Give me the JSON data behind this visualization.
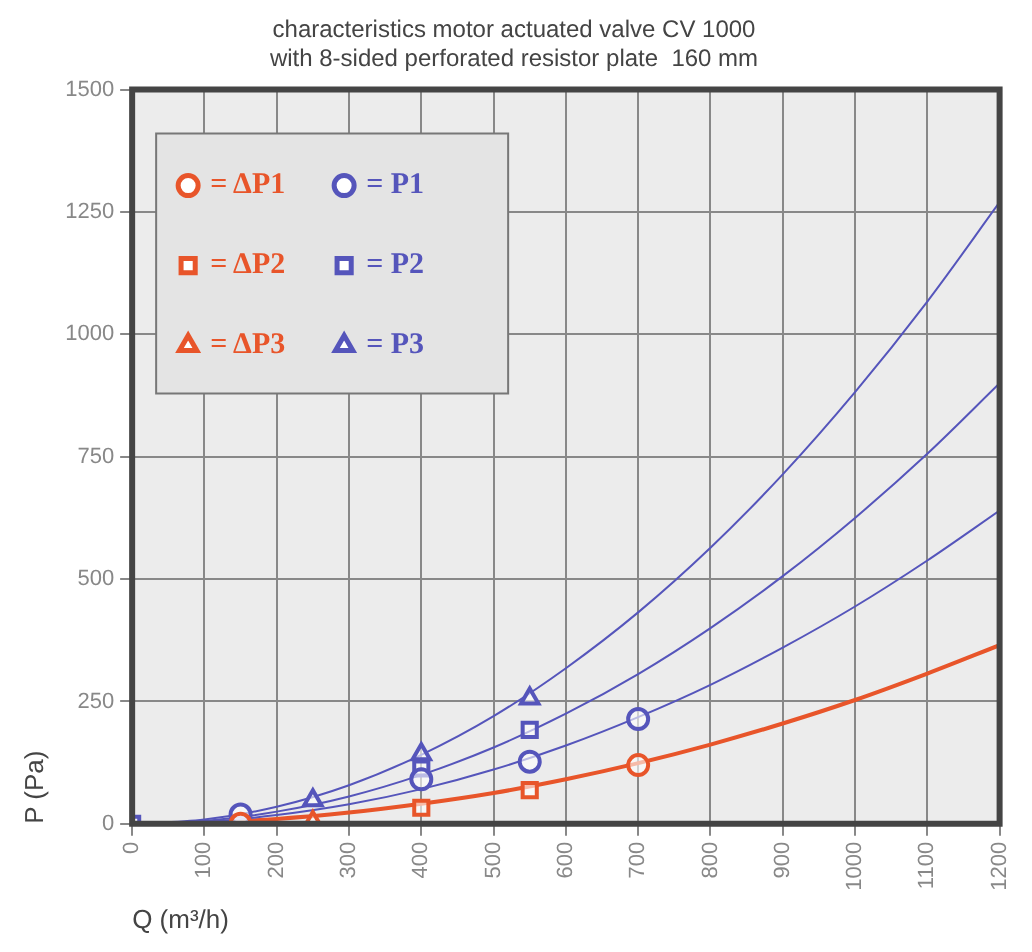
{
  "chart_data": {
    "type": "scatter",
    "title": "characteristics motor actuated valve CV 1000\nwith 8-sided perforated resistor plate  160 mm",
    "xlabel": "Q (m³/h)",
    "ylabel": "P (Pa)",
    "xlim": [
      0,
      1200
    ],
    "xticks": [
      0,
      100,
      200,
      300,
      400,
      500,
      600,
      700,
      800,
      900,
      1000,
      1100,
      1200
    ],
    "ylim": [
      0,
      1500
    ],
    "yticks": [
      0,
      250,
      500,
      750,
      1000,
      1250,
      1500
    ],
    "grid": true,
    "legend": "top left",
    "series": [
      {
        "name": "= ΔP1",
        "color": "#e8552a",
        "marker": "circle",
        "x": [
          150,
          700
        ],
        "values": [
          0,
          120
        ]
      },
      {
        "name": "= P1",
        "color": "#5555bb",
        "marker": "circle",
        "x": [
          150,
          400,
          550,
          700
        ],
        "values": [
          19,
          91,
          127,
          214
        ]
      },
      {
        "name": "= ΔP2",
        "color": "#e8552a",
        "marker": "square",
        "x": [
          400,
          550
        ],
        "values": [
          33,
          69
        ]
      },
      {
        "name": "= P2",
        "color": "#5555bb",
        "marker": "square",
        "x": [
          0,
          400,
          550
        ],
        "values": [
          0,
          113,
          192
        ]
      },
      {
        "name": "= ΔP3",
        "color": "#e8552a",
        "marker": "triangle",
        "x": [
          250
        ],
        "values": [
          4
        ]
      },
      {
        "name": "= P3",
        "color": "#5555bb",
        "marker": "triangle",
        "x": [
          250,
          400,
          550
        ],
        "values": [
          48,
          142,
          256
        ]
      },
      {
        "type": "line",
        "color": "#5555bb",
        "marker": "none",
        "x": [
          0,
          100,
          200,
          300,
          400,
          500,
          600,
          700,
          800,
          900,
          1000,
          1100,
          1200
        ],
        "values": [
          0,
          9,
          35,
          79,
          141,
          220,
          318,
          432,
          564,
          714,
          882,
          1067,
          1270
        ]
      },
      {
        "type": "line",
        "color": "#5555bb",
        "marker": "none",
        "x": [
          0,
          100,
          200,
          300,
          400,
          500,
          600,
          700,
          800,
          900,
          1000,
          1100,
          1200
        ],
        "values": [
          0,
          6,
          25,
          56,
          100,
          156,
          225,
          306,
          400,
          506,
          625,
          756,
          900
        ]
      },
      {
        "type": "line",
        "color": "#5555bb",
        "marker": "none",
        "x": [
          0,
          100,
          200,
          300,
          400,
          500,
          600,
          700,
          800,
          900,
          1000,
          1100,
          1200
        ],
        "values": [
          0,
          4,
          18,
          40,
          71,
          111,
          160,
          218,
          284,
          360,
          444,
          538,
          640
        ]
      },
      {
        "type": "line",
        "color": "#e8552a",
        "marker": "none",
        "x": [
          0,
          100,
          200,
          300,
          400,
          500,
          600,
          700,
          800,
          900,
          1000,
          1100,
          1200
        ],
        "values": [
          0,
          3,
          10,
          23,
          41,
          63,
          91,
          124,
          162,
          205,
          253,
          307,
          365
        ]
      }
    ]
  }
}
